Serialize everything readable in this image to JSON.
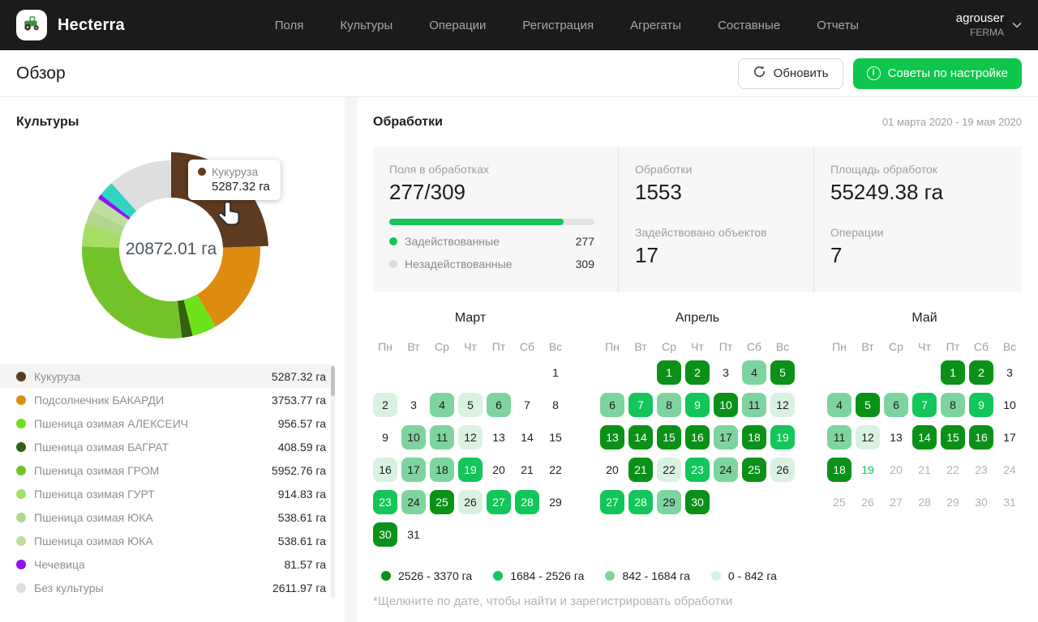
{
  "colors": {
    "accent_green": "#0fc64c",
    "progress_green": "#17c45a",
    "used_dot": "#12c558",
    "unused_dot": "#d9d9d9",
    "cal_l1": "#d9f1e1",
    "cal_l2": "#7ed49e",
    "cal_l3": "#13c659",
    "cal_l4": "#0b9118",
    "today_green": "#12c558"
  },
  "navbar": {
    "brand": "Hecterra",
    "items": [
      "Поля",
      "Культуры",
      "Операции",
      "Регистрация",
      "Агрегаты",
      "Составные",
      "Отчеты"
    ],
    "user": {
      "name": "agrouser",
      "org": "FERMA"
    }
  },
  "page_header": {
    "title": "Обзор",
    "refresh": "Обновить",
    "tips": "Советы по настройке"
  },
  "cultures": {
    "title": "Культуры",
    "center_total": "20872.01 га",
    "tooltip": {
      "label": "Кукуруза",
      "value": "5287.32 га",
      "color": "#5d3b20"
    },
    "list": [
      {
        "label": "Кукуруза",
        "value": "5287.32 га",
        "color": "#5d3b20",
        "active": true
      },
      {
        "label": "Подсолнечник БАКАРДИ",
        "value": "3753.77 га",
        "color": "#de8c10",
        "active": false
      },
      {
        "label": "Пшеница озимая АЛЕКСЕИЧ",
        "value": "956.57 га",
        "color": "#6ee21a",
        "active": false
      },
      {
        "label": "Пшеница озимая БАГРАТ",
        "value": "408.59 га",
        "color": "#33610d",
        "active": false
      },
      {
        "label": "Пшеница озимая ГРОМ",
        "value": "5952.76 га",
        "color": "#72c32a",
        "active": false
      },
      {
        "label": "Пшеница озимая ГУРТ",
        "value": "914.83 га",
        "color": "#a5dd66",
        "active": false
      },
      {
        "label": "Пшеница озимая ЮКА",
        "value": "538.61 га",
        "color": "#b0d68f",
        "active": false
      },
      {
        "label": "Пшеница озимая ЮКА",
        "value": "538.61 га",
        "color": "#bede9f",
        "active": false
      },
      {
        "label": "Чечевица",
        "value": "81.57 га",
        "color": "#9013f0",
        "active": false
      },
      {
        "label": "Без культуры",
        "value": "2611.97 га",
        "color": "#dedede",
        "active": false
      }
    ]
  },
  "chart_data": {
    "type": "pie",
    "variant": "donut",
    "title": "Культуры",
    "center_label": "20872.01 га",
    "unit": "га",
    "segments": [
      {
        "label": "Кукуруза",
        "value": 5287.32,
        "angle_deg": 88,
        "color": "#5d3b20",
        "hovered": true
      },
      {
        "label": "Подсолнечник БАКАРДИ",
        "value": 3753.77,
        "angle_deg": 62,
        "color": "#de8c10",
        "hovered": false
      },
      {
        "label": "Пшеница озимая АЛЕКСЕИЧ",
        "value": 956.57,
        "angle_deg": 16,
        "color": "#6ee21a",
        "hovered": false
      },
      {
        "label": "Пшеница озимая БАГРАТ",
        "value": 408.59,
        "angle_deg": 7,
        "color": "#33610d",
        "hovered": false
      },
      {
        "label": "Пшеница озимая ГРОМ",
        "value": 5952.76,
        "angle_deg": 99,
        "color": "#72c32a",
        "hovered": false
      },
      {
        "label": "Пшеница озимая ГУРТ",
        "value": 914.83,
        "angle_deg": 15,
        "color": "#a5dd66",
        "hovered": false
      },
      {
        "label": "Пшеница озимая ЮКА",
        "value": 538.61,
        "angle_deg": 9,
        "color": "#b0d68f",
        "hovered": false
      },
      {
        "label": "Пшеница озимая ЮКА",
        "value": 538.61,
        "angle_deg": 9,
        "color": "#bede9f",
        "hovered": false
      },
      {
        "label": "Чечевица",
        "value": 81.57,
        "angle_deg": 3,
        "color": "#9013f0",
        "hovered": false
      },
      {
        "label": "",
        "value": null,
        "angle_deg": 10,
        "color": "#2fd5c2",
        "hovered": false
      },
      {
        "label": "Без культуры",
        "value": 2611.97,
        "angle_deg": 42,
        "color": "#dedede",
        "hovered": false
      }
    ]
  },
  "treatments": {
    "title": "Обработки",
    "date_range": "01 марта 2020 - 19 мая 2020",
    "stats": {
      "fields_label": "Поля в обработках",
      "fields_value": "277/309",
      "progress_pct": 85,
      "used_label": "Задействованные",
      "used_value": "277",
      "unused_label": "Незадействованные",
      "unused_value": "309",
      "count_label": "Обработки",
      "count_value": "1553",
      "objects_label": "Задействовано объектов",
      "objects_value": "17",
      "area_label": "Площадь обработок",
      "area_value": "55249.38 га",
      "operations_label": "Операции",
      "operations_value": "7"
    },
    "weekdays": [
      "Пн",
      "Вт",
      "Ср",
      "Чт",
      "Пт",
      "Сб",
      "Вс"
    ],
    "months": [
      {
        "name": "Март",
        "first_col": 6,
        "days": 31,
        "levels": {
          "2": 1,
          "4": 2,
          "5": 1,
          "6": 2,
          "10": 2,
          "11": 2,
          "12": 1,
          "16": 1,
          "17": 2,
          "18": 2,
          "19": 3,
          "23": 3,
          "24": 2,
          "25": 4,
          "26": 1,
          "27": 3,
          "28": 3,
          "30": 4
        }
      },
      {
        "name": "Апрель",
        "first_col": 2,
        "days": 30,
        "levels": {
          "1": 4,
          "2": 4,
          "4": 2,
          "5": 4,
          "6": 2,
          "7": 3,
          "8": 2,
          "9": 3,
          "10": 4,
          "11": 2,
          "12": 1,
          "13": 4,
          "14": 4,
          "15": 4,
          "16": 4,
          "17": 2,
          "18": 4,
          "19": 3,
          "21": 4,
          "22": 1,
          "23": 3,
          "24": 2,
          "25": 4,
          "26": 1,
          "27": 3,
          "28": 3,
          "29": 2,
          "30": 4
        }
      },
      {
        "name": "Май",
        "first_col": 4,
        "days": 31,
        "today": 19,
        "muted_from": 20,
        "levels": {
          "1": 4,
          "2": 4,
          "4": 2,
          "5": 4,
          "6": 2,
          "7": 3,
          "8": 2,
          "9": 3,
          "11": 2,
          "12": 1,
          "14": 4,
          "15": 4,
          "16": 4,
          "18": 4
        }
      }
    ],
    "legend": [
      {
        "label": "2526 - 3370 га",
        "level": 4
      },
      {
        "label": "1684 - 2526 га",
        "level": 3
      },
      {
        "label": "842 - 1684 га",
        "level": 2
      },
      {
        "label": "0 - 842 га",
        "level": 1
      }
    ],
    "footnote": "*Щелкните по дате, чтобы найти и зарегистрировать обработки"
  }
}
